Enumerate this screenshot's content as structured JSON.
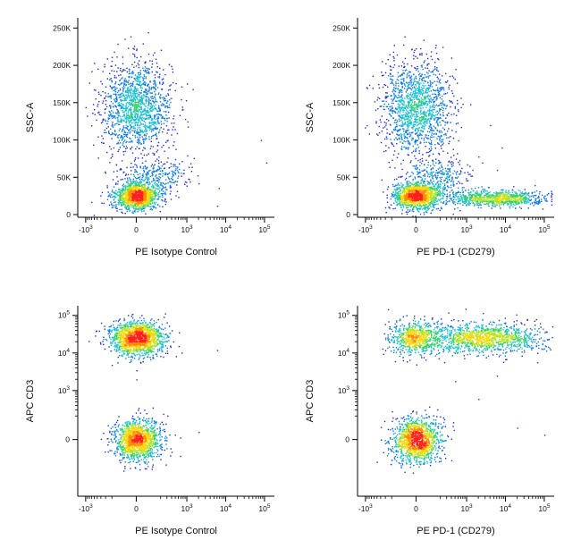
{
  "figure": {
    "description_panels": 4
  },
  "colormap": [
    "#1f2bd6",
    "#0c79e8",
    "#17c0d2",
    "#2fd06b",
    "#b9e31c",
    "#ffd600",
    "#ff8a00",
    "#ff1f1f"
  ],
  "chart_data": [
    {
      "type": "scatter",
      "xlabel": "PE Isotype Control",
      "ylabel": "SSC-A",
      "x_scale": "biexponential",
      "y_scale": "linear",
      "xlim": [
        "-10^3",
        "10^5"
      ],
      "ylim": [
        0,
        260000
      ],
      "x_ticks": [
        {
          "value": -1000,
          "label_base": "-10",
          "label_exp": "3"
        },
        {
          "value": 0,
          "label_base": "0",
          "label_exp": ""
        },
        {
          "value": 1000,
          "label_base": "10",
          "label_exp": "3"
        },
        {
          "value": 10000,
          "label_base": "10",
          "label_exp": "4"
        },
        {
          "value": 100000,
          "label_base": "10",
          "label_exp": "5"
        }
      ],
      "y_ticks": [
        {
          "value": 0,
          "label": "0"
        },
        {
          "value": 50000,
          "label": "50K"
        },
        {
          "value": 100000,
          "label": "100K"
        },
        {
          "value": 150000,
          "label": "150K"
        },
        {
          "value": 200000,
          "label": "200K"
        },
        {
          "value": 250000,
          "label": "250K"
        }
      ],
      "populations": [
        {
          "x_center": 0,
          "x_spread": 0.45,
          "y_center": 145000,
          "y_spread": 30000,
          "count": 1450
        },
        {
          "x_center": 0,
          "x_spread": 0.28,
          "y_center": 25000,
          "y_spread": 9000,
          "count": 1250
        },
        {
          "x_center": 120,
          "x_spread": 0.45,
          "y_center": 52000,
          "y_spread": 12000,
          "count": 320
        }
      ],
      "outliers": [
        {
          "x": 6000,
          "y": 12000
        },
        {
          "x": 80000,
          "y": 100000
        },
        {
          "x": 110000,
          "y": 70000
        },
        {
          "x": 2000,
          "y": 42000
        }
      ]
    },
    {
      "type": "scatter",
      "xlabel": "PE PD-1 (CD279)",
      "ylabel": "SSC-A",
      "x_scale": "biexponential",
      "y_scale": "linear",
      "xlim": [
        "-10^3",
        "10^5"
      ],
      "ylim": [
        0,
        260000
      ],
      "x_ticks": [
        {
          "value": -1000,
          "label_base": "-10",
          "label_exp": "3"
        },
        {
          "value": 0,
          "label_base": "0",
          "label_exp": ""
        },
        {
          "value": 1000,
          "label_base": "10",
          "label_exp": "3"
        },
        {
          "value": 10000,
          "label_base": "10",
          "label_exp": "4"
        },
        {
          "value": 100000,
          "label_base": "10",
          "label_exp": "5"
        }
      ],
      "y_ticks": [
        {
          "value": 0,
          "label": "0"
        },
        {
          "value": 50000,
          "label": "50K"
        },
        {
          "value": 100000,
          "label": "100K"
        },
        {
          "value": 150000,
          "label": "150K"
        },
        {
          "value": 200000,
          "label": "200K"
        },
        {
          "value": 250000,
          "label": "250K"
        }
      ],
      "populations": [
        {
          "x_center": 0,
          "x_spread": 0.45,
          "y_center": 145000,
          "y_spread": 30000,
          "count": 1450
        },
        {
          "x_center": 0,
          "x_spread": 0.3,
          "y_center": 25000,
          "y_spread": 9000,
          "count": 1200
        },
        {
          "x_center": 5000,
          "x_spread": 0.7,
          "y_center": 22000,
          "y_spread": 5000,
          "count": 900
        },
        {
          "x_center": 150,
          "x_spread": 0.45,
          "y_center": 52000,
          "y_spread": 12000,
          "count": 320
        }
      ],
      "outliers": [
        {
          "x": 2000,
          "y": 78000
        },
        {
          "x": 6000,
          "y": 60000
        },
        {
          "x": 30000,
          "y": 28000
        },
        {
          "x": 4000,
          "y": 120000
        },
        {
          "x": 8000,
          "y": 90000
        }
      ]
    },
    {
      "type": "scatter",
      "xlabel": "PE Isotype Control",
      "ylabel": "APC CD3",
      "x_scale": "biexponential",
      "y_scale": "biexponential",
      "xlim": [
        "-10^3",
        "10^5"
      ],
      "ylim": [
        "-10^3",
        "10^5"
      ],
      "x_ticks": [
        {
          "value": -1000,
          "label_base": "-10",
          "label_exp": "3"
        },
        {
          "value": 0,
          "label_base": "0",
          "label_exp": ""
        },
        {
          "value": 1000,
          "label_base": "10",
          "label_exp": "3"
        },
        {
          "value": 10000,
          "label_base": "10",
          "label_exp": "4"
        },
        {
          "value": 100000,
          "label_base": "10",
          "label_exp": "5"
        }
      ],
      "y_ticks": [
        {
          "value": 0,
          "label_base": "0",
          "label_exp": ""
        },
        {
          "value": 1000,
          "label_base": "10",
          "label_exp": "3"
        },
        {
          "value": 10000,
          "label_base": "10",
          "label_exp": "4"
        },
        {
          "value": 100000,
          "label_base": "10",
          "label_exp": "5"
        }
      ],
      "populations": [
        {
          "x_center": 0,
          "x_spread": 0.35,
          "y_center": 25000,
          "y_spread": 0.22,
          "count": 1500
        },
        {
          "x_center": 0,
          "x_spread": 0.3,
          "y_center": 0,
          "y_spread": 0.28,
          "count": 1300
        }
      ],
      "outliers": [
        {
          "x": 6000,
          "y": 12000
        },
        {
          "x": 2000,
          "y": 50
        },
        {
          "x": 0,
          "y": 2000
        },
        {
          "x": 0,
          "y": 3500
        }
      ]
    },
    {
      "type": "scatter",
      "xlabel": "PE PD-1 (CD279)",
      "ylabel": "APC CD3",
      "x_scale": "biexponential",
      "y_scale": "biexponential",
      "xlim": [
        "-10^3",
        "10^5"
      ],
      "ylim": [
        "-10^3",
        "10^5"
      ],
      "x_ticks": [
        {
          "value": -1000,
          "label_base": "-10",
          "label_exp": "3"
        },
        {
          "value": 0,
          "label_base": "0",
          "label_exp": ""
        },
        {
          "value": 1000,
          "label_base": "10",
          "label_exp": "3"
        },
        {
          "value": 10000,
          "label_base": "10",
          "label_exp": "4"
        },
        {
          "value": 100000,
          "label_base": "10",
          "label_exp": "5"
        }
      ],
      "y_ticks": [
        {
          "value": 0,
          "label_base": "0",
          "label_exp": ""
        },
        {
          "value": 1000,
          "label_base": "10",
          "label_exp": "3"
        },
        {
          "value": 10000,
          "label_base": "10",
          "label_exp": "4"
        },
        {
          "value": 100000,
          "label_base": "10",
          "label_exp": "5"
        }
      ],
      "populations": [
        {
          "x_center": 0,
          "x_spread": 0.35,
          "y_center": 25000,
          "y_spread": 0.22,
          "count": 700
        },
        {
          "x_center": 3000,
          "x_spread": 0.75,
          "y_center": 25000,
          "y_spread": 0.2,
          "count": 1200
        },
        {
          "x_center": 0,
          "x_spread": 0.3,
          "y_center": 0,
          "y_spread": 0.28,
          "count": 1300
        }
      ],
      "outliers": [
        {
          "x": 2000,
          "y": 600
        },
        {
          "x": 6000,
          "y": 2500
        },
        {
          "x": 20000,
          "y": 80
        },
        {
          "x": 100000,
          "y": 30
        },
        {
          "x": 500,
          "y": 1800
        }
      ]
    }
  ]
}
